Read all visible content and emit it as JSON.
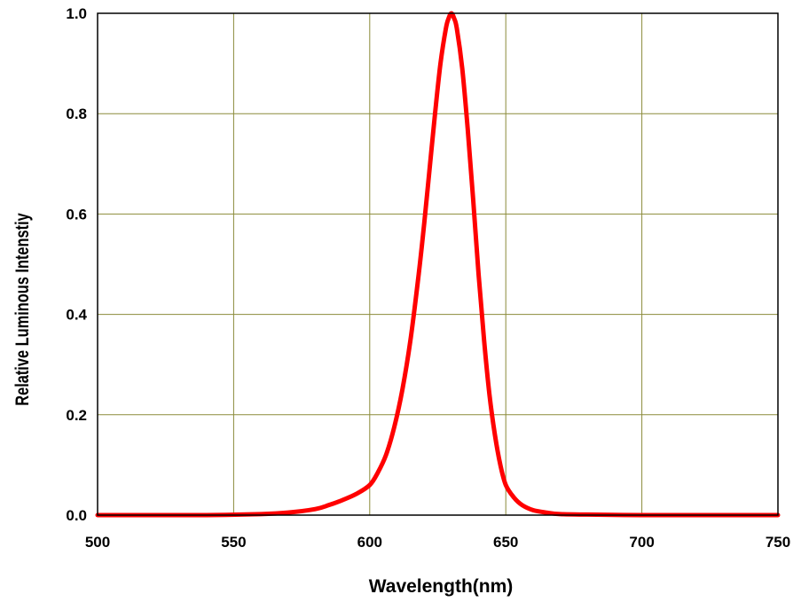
{
  "chart_data": {
    "type": "line",
    "title": "",
    "xlabel": "Wavelength(nm)",
    "ylabel": "Relative Luminous Intenstiy",
    "xlim": [
      500,
      750
    ],
    "ylim": [
      0,
      1.0
    ],
    "x_ticks": [
      500,
      550,
      600,
      650,
      700,
      750
    ],
    "x_tick_labels": [
      "500",
      "550",
      "600",
      "650",
      "700",
      "750"
    ],
    "y_ticks": [
      0.0,
      0.2,
      0.4,
      0.6,
      0.8,
      1.0
    ],
    "y_tick_labels": [
      "0.0",
      "0.2",
      "0.4",
      "0.6",
      "0.8",
      "1.0"
    ],
    "grid": true,
    "legend": "none",
    "colors": {
      "series": "#ff0000",
      "grid": "#8b8b3a",
      "frame": "#000000"
    },
    "series": [
      {
        "color": "#ff0000",
        "x": [
          500,
          520,
          540,
          560,
          570,
          580,
          585,
          590,
          595,
          600,
          603,
          606,
          609,
          612,
          615,
          618,
          620,
          622,
          624,
          626,
          628,
          629,
          630,
          631,
          632,
          634,
          636,
          638,
          640,
          642,
          644,
          646,
          648,
          650,
          653,
          656,
          660,
          665,
          670,
          680,
          700,
          720,
          750
        ],
        "y": [
          0.0,
          0.0,
          0.0,
          0.002,
          0.005,
          0.012,
          0.02,
          0.03,
          0.042,
          0.06,
          0.085,
          0.12,
          0.175,
          0.25,
          0.35,
          0.48,
          0.58,
          0.69,
          0.8,
          0.9,
          0.97,
          0.99,
          1.0,
          0.99,
          0.97,
          0.89,
          0.77,
          0.63,
          0.48,
          0.35,
          0.24,
          0.16,
          0.1,
          0.06,
          0.035,
          0.02,
          0.01,
          0.005,
          0.002,
          0.001,
          0.0,
          0.0,
          0.0
        ]
      }
    ]
  }
}
